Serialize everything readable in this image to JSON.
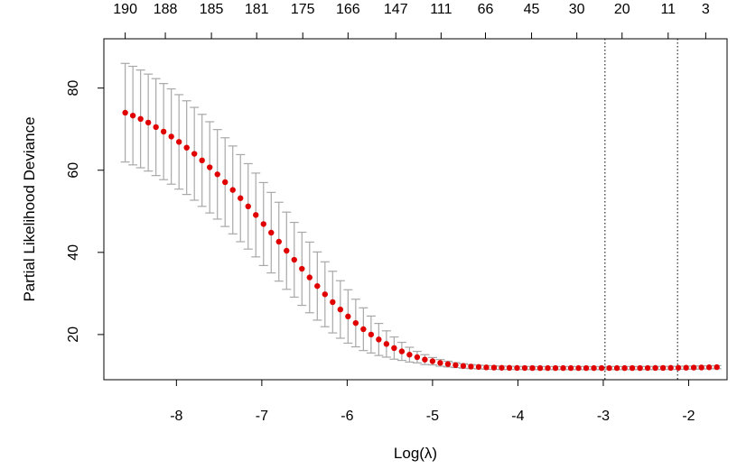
{
  "chart_data": {
    "type": "scatter",
    "title": "",
    "xlabel": "Log(λ)",
    "ylabel": "Partial Likelihood Deviance",
    "xlim": [
      -8.85,
      -1.55
    ],
    "ylim": [
      9,
      92
    ],
    "x_ticks": [
      -8,
      -7,
      -6,
      -5,
      -4,
      -3,
      -2
    ],
    "y_ticks": [
      20,
      40,
      60,
      80
    ],
    "top_ticks": [
      {
        "x": -8.6,
        "label": "190"
      },
      {
        "x": -8.13,
        "label": "188"
      },
      {
        "x": -7.59,
        "label": "185"
      },
      {
        "x": -7.06,
        "label": "181"
      },
      {
        "x": -6.52,
        "label": "175"
      },
      {
        "x": -5.99,
        "label": "166"
      },
      {
        "x": -5.43,
        "label": "147"
      },
      {
        "x": -4.9,
        "label": "111"
      },
      {
        "x": -4.38,
        "label": "66"
      },
      {
        "x": -3.84,
        "label": "45"
      },
      {
        "x": -3.31,
        "label": "30"
      },
      {
        "x": -2.78,
        "label": "20"
      },
      {
        "x": -2.24,
        "label": "11"
      },
      {
        "x": -1.8,
        "label": "3"
      }
    ],
    "vlines": [
      -2.98,
      -2.13
    ],
    "colors": {
      "points": "#e00000",
      "errorbars": "#a8a8a8",
      "vlines": "#000000"
    },
    "series": [
      {
        "x": [
          -8.6,
          -8.51,
          -8.42,
          -8.33,
          -8.24,
          -8.15,
          -8.06,
          -7.97,
          -7.88,
          -7.79,
          -7.7,
          -7.61,
          -7.52,
          -7.43,
          -7.34,
          -7.25,
          -7.16,
          -7.07,
          -6.98,
          -6.89,
          -6.8,
          -6.71,
          -6.62,
          -6.53,
          -6.44,
          -6.35,
          -6.26,
          -6.17,
          -6.08,
          -5.99,
          -5.9,
          -5.81,
          -5.72,
          -5.63,
          -5.54,
          -5.45,
          -5.36,
          -5.27,
          -5.18,
          -5.09,
          -5.0,
          -4.91,
          -4.82,
          -4.73,
          -4.64,
          -4.55,
          -4.46,
          -4.37,
          -4.28,
          -4.19,
          -4.1,
          -4.01,
          -3.92,
          -3.83,
          -3.74,
          -3.65,
          -3.56,
          -3.47,
          -3.38,
          -3.29,
          -3.2,
          -3.11,
          -3.02,
          -2.93,
          -2.84,
          -2.75,
          -2.66,
          -2.57,
          -2.48,
          -2.39,
          -2.3,
          -2.21,
          -2.12,
          -2.03,
          -1.94,
          -1.85,
          -1.76,
          -1.67
        ],
        "y": [
          74.0,
          73.3,
          72.5,
          71.6,
          70.5,
          69.4,
          68.2,
          66.9,
          65.5,
          64.0,
          62.4,
          60.7,
          59.0,
          57.1,
          55.2,
          53.2,
          51.2,
          49.1,
          46.9,
          44.8,
          42.6,
          40.4,
          38.2,
          36.0,
          33.9,
          31.8,
          29.8,
          27.9,
          26.1,
          24.4,
          22.8,
          21.3,
          20.0,
          18.8,
          17.7,
          16.7,
          15.9,
          15.1,
          14.5,
          13.9,
          13.5,
          13.1,
          12.8,
          12.55,
          12.35,
          12.2,
          12.1,
          12.0,
          11.95,
          11.9,
          11.88,
          11.86,
          11.85,
          11.84,
          11.83,
          11.83,
          11.83,
          11.83,
          11.83,
          11.83,
          11.83,
          11.83,
          11.83,
          11.83,
          11.83,
          11.83,
          11.84,
          11.84,
          11.85,
          11.86,
          11.87,
          11.88,
          11.9,
          11.92,
          11.95,
          11.98,
          12.02,
          12.05
        ],
        "upper": [
          86.0,
          85.3,
          84.4,
          83.4,
          82.3,
          81.1,
          79.8,
          78.4,
          76.9,
          75.3,
          73.6,
          71.8,
          69.9,
          67.9,
          65.9,
          63.8,
          61.6,
          59.3,
          57.0,
          54.6,
          52.2,
          49.8,
          47.3,
          44.9,
          42.5,
          40.1,
          37.7,
          35.4,
          33.1,
          30.9,
          28.6,
          26.5,
          24.5,
          22.7,
          20.9,
          19.4,
          18.1,
          16.9,
          15.9,
          15.1,
          14.4,
          13.9,
          13.5,
          13.15,
          12.9,
          12.7,
          12.55,
          12.45,
          12.38,
          12.32,
          12.28,
          12.25,
          12.23,
          12.22,
          12.21,
          12.21,
          12.21,
          12.21,
          12.21,
          12.21,
          12.21,
          12.21,
          12.21,
          12.21,
          12.21,
          12.21,
          12.22,
          12.22,
          12.23,
          12.24,
          12.25,
          12.26,
          12.28,
          12.3,
          12.33,
          12.36,
          12.4,
          12.43
        ],
        "lower": [
          62.0,
          61.3,
          60.6,
          59.8,
          58.7,
          57.7,
          56.6,
          55.4,
          54.1,
          52.7,
          51.2,
          49.6,
          48.1,
          46.3,
          44.5,
          42.6,
          40.8,
          38.9,
          36.8,
          35.0,
          33.0,
          31.0,
          29.1,
          27.1,
          25.3,
          23.5,
          21.9,
          20.4,
          19.1,
          17.9,
          17.0,
          16.1,
          15.5,
          14.9,
          14.5,
          14.0,
          13.7,
          13.3,
          13.1,
          12.7,
          12.6,
          12.3,
          12.1,
          11.95,
          11.8,
          11.7,
          11.65,
          11.55,
          11.52,
          11.48,
          11.48,
          11.47,
          11.47,
          11.46,
          11.45,
          11.45,
          11.45,
          11.45,
          11.45,
          11.45,
          11.45,
          11.45,
          11.45,
          11.45,
          11.45,
          11.45,
          11.46,
          11.46,
          11.47,
          11.48,
          11.49,
          11.5,
          11.52,
          11.54,
          11.57,
          11.6,
          11.64,
          11.67
        ]
      }
    ]
  }
}
